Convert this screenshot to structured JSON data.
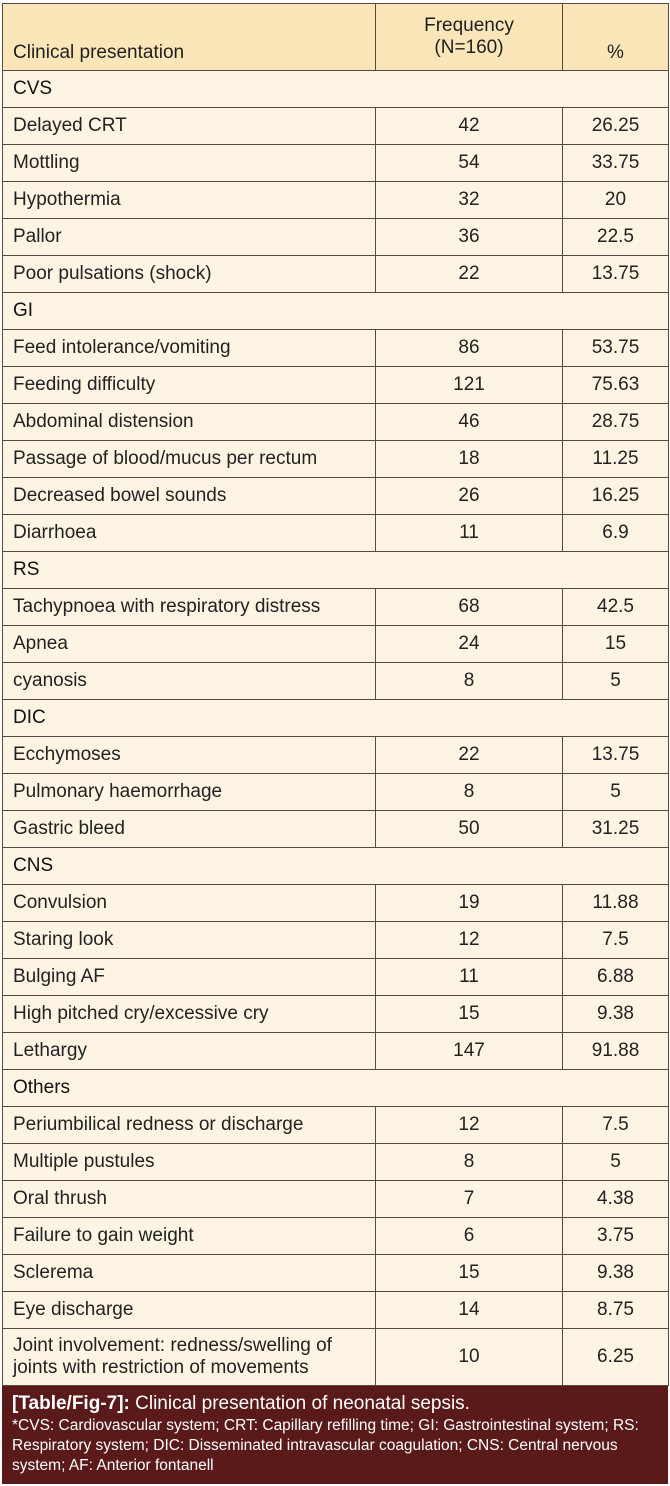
{
  "table": {
    "header": {
      "col1": "Clinical presentation",
      "col2_line1": "Frequency",
      "col2_line2": "(N=160)",
      "col3": "%"
    },
    "rows": [
      {
        "type": "group",
        "label": "CVS"
      },
      {
        "type": "data",
        "label": "Delayed CRT",
        "frequency": "42",
        "percent": "26.25"
      },
      {
        "type": "data",
        "label": "Mottling",
        "frequency": "54",
        "percent": "33.75"
      },
      {
        "type": "data",
        "label": "Hypothermia",
        "frequency": "32",
        "percent": "20"
      },
      {
        "type": "data",
        "label": "Pallor",
        "frequency": "36",
        "percent": "22.5"
      },
      {
        "type": "data",
        "label": "Poor pulsations (shock)",
        "frequency": "22",
        "percent": "13.75"
      },
      {
        "type": "group",
        "label": "GI"
      },
      {
        "type": "data",
        "label": "Feed intolerance/vomiting",
        "frequency": "86",
        "percent": "53.75"
      },
      {
        "type": "data",
        "label": "Feeding difficulty",
        "frequency": "121",
        "percent": "75.63"
      },
      {
        "type": "data",
        "label": "Abdominal distension",
        "frequency": "46",
        "percent": "28.75"
      },
      {
        "type": "data",
        "label": "Passage of blood/mucus per rectum",
        "frequency": "18",
        "percent": "11.25"
      },
      {
        "type": "data",
        "label": "Decreased bowel sounds",
        "frequency": "26",
        "percent": "16.25"
      },
      {
        "type": "data",
        "label": "Diarrhoea",
        "frequency": "11",
        "percent": "6.9"
      },
      {
        "type": "group",
        "label": "RS"
      },
      {
        "type": "data",
        "label": "Tachypnoea with respiratory distress",
        "frequency": "68",
        "percent": "42.5"
      },
      {
        "type": "data",
        "label": "Apnea",
        "frequency": "24",
        "percent": "15"
      },
      {
        "type": "data",
        "label": "cyanosis",
        "frequency": "8",
        "percent": "5"
      },
      {
        "type": "group",
        "label": "DIC"
      },
      {
        "type": "data",
        "label": "Ecchymoses",
        "frequency": "22",
        "percent": "13.75"
      },
      {
        "type": "data",
        "label": "Pulmonary haemorrhage",
        "frequency": "8",
        "percent": "5"
      },
      {
        "type": "data",
        "label": "Gastric bleed",
        "frequency": "50",
        "percent": "31.25"
      },
      {
        "type": "group",
        "label": "CNS"
      },
      {
        "type": "data",
        "label": "Convulsion",
        "frequency": "19",
        "percent": "11.88"
      },
      {
        "type": "data",
        "label": "Staring look",
        "frequency": "12",
        "percent": "7.5"
      },
      {
        "type": "data",
        "label": "Bulging AF",
        "frequency": "11",
        "percent": "6.88"
      },
      {
        "type": "data",
        "label": "High pitched cry/excessive cry",
        "frequency": "15",
        "percent": "9.38"
      },
      {
        "type": "data",
        "label": "Lethargy",
        "frequency": "147",
        "percent": "91.88"
      },
      {
        "type": "group",
        "label": "Others"
      },
      {
        "type": "data",
        "label": "Periumbilical redness or discharge",
        "frequency": "12",
        "percent": "7.5"
      },
      {
        "type": "data",
        "label": "Multiple pustules",
        "frequency": "8",
        "percent": "5"
      },
      {
        "type": "data",
        "label": "Oral thrush",
        "frequency": "7",
        "percent": "4.38"
      },
      {
        "type": "data",
        "label": "Failure to gain weight",
        "frequency": "6",
        "percent": "3.75"
      },
      {
        "type": "data",
        "label": "Sclerema",
        "frequency": "15",
        "percent": "9.38"
      },
      {
        "type": "data",
        "label": "Eye discharge",
        "frequency": "14",
        "percent": "8.75"
      },
      {
        "type": "data",
        "tall": true,
        "label": "Joint involvement: redness/swelling of joints with restriction of movements",
        "frequency": "10",
        "percent": "6.25"
      }
    ]
  },
  "caption": {
    "label": "[Table/Fig-7]:",
    "title": "Clinical presentation of neonatal sepsis.",
    "notes": "*CVS: Cardiovascular system; CRT: Capillary refilling time; GI: Gastrointestinal system; RS: Respiratory system; DIC: Disseminated intravascular coagulation; CNS: Central nervous system; AF: Anterior fontanell"
  },
  "colors": {
    "header_bg": "#fbe6b9",
    "body_bg": "#fdf4e3",
    "border": "#5a4a3a",
    "caption_bg": "#5a1a1a",
    "caption_text": "#ffffff"
  }
}
